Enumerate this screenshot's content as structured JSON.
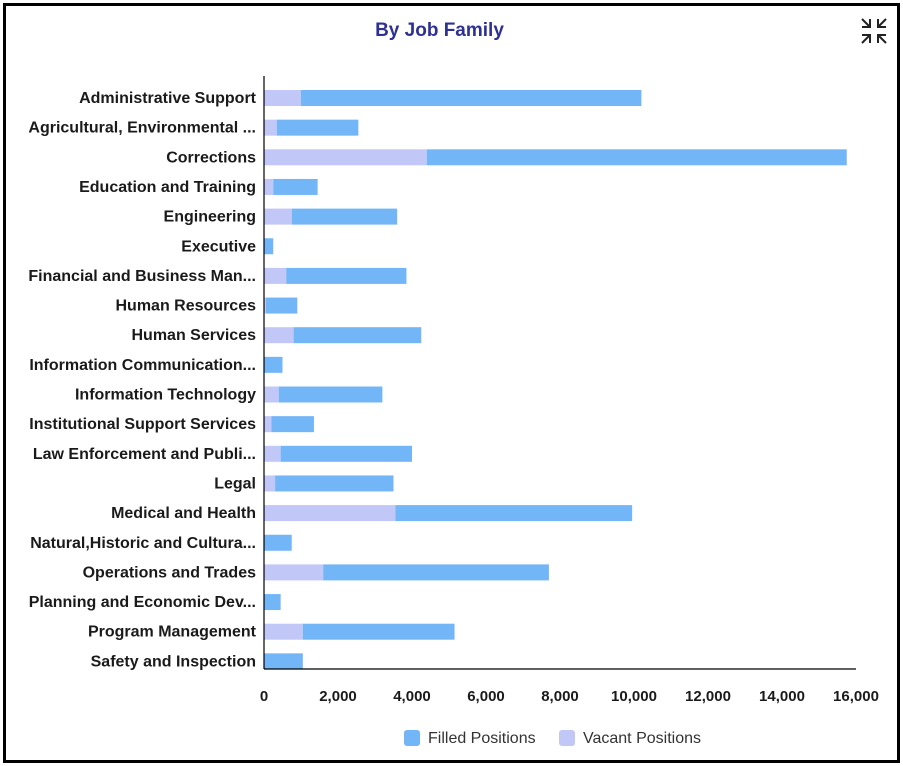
{
  "header": {
    "title": "By Job Family",
    "title_color": "#2e3192",
    "collapse_icon": "collapse-arrows-icon"
  },
  "chart_data": {
    "type": "bar",
    "orientation": "horizontal",
    "stacked": true,
    "title": "By Job Family",
    "xlabel": "",
    "ylabel": "",
    "xlim": [
      0,
      16000
    ],
    "x_ticks": [
      0,
      2000,
      4000,
      6000,
      8000,
      10000,
      12000,
      14000,
      16000
    ],
    "x_tick_labels": [
      "0",
      "2,000",
      "4,000",
      "6,000",
      "8,000",
      "10,000",
      "12,000",
      "14,000",
      "16,000"
    ],
    "grid": false,
    "legend_position": "bottom-center",
    "categories": [
      "Administrative Support",
      "Agricultural, Environmental ...",
      "Corrections",
      "Education and Training",
      "Engineering",
      "Executive",
      "Financial and Business Man...",
      "Human Resources",
      "Human Services",
      "Information Communication...",
      "Information Technology",
      "Institutional Support Services",
      "Law Enforcement and Publi...",
      "Legal",
      "Medical and Health",
      "Natural,Historic and Cultura...",
      "Operations and Trades",
      "Planning and Economic Dev...",
      "Program Management",
      "Safety and Inspection"
    ],
    "series": [
      {
        "name": "Vacant Positions",
        "color": "#c1c8f7",
        "values": [
          1000,
          350,
          4400,
          250,
          750,
          0,
          600,
          50,
          800,
          0,
          400,
          200,
          450,
          300,
          3550,
          0,
          1600,
          0,
          1050,
          0
        ]
      },
      {
        "name": "Filled Positions",
        "color": "#73b6f7",
        "values": [
          9200,
          2200,
          11350,
          1200,
          2850,
          250,
          3250,
          850,
          3450,
          500,
          2800,
          1150,
          3550,
          3200,
          6400,
          750,
          6100,
          450,
          4100,
          1050
        ]
      }
    ],
    "legend": [
      "Filled Positions",
      "Vacant Positions"
    ]
  }
}
